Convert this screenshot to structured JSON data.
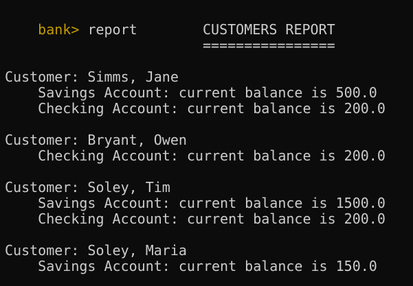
{
  "terminal": {
    "prompt": "bank>",
    "command": "report",
    "report_title": "CUSTOMERS REPORT",
    "report_underline": "================",
    "customers": [
      {
        "name": "Customer: Simms, Jane",
        "accounts": [
          "Savings Account: current balance is 500.0",
          "Checking Account: current balance is 200.0"
        ]
      },
      {
        "name": "Customer: Bryant, Owen",
        "accounts": [
          "Checking Account: current balance is 200.0"
        ]
      },
      {
        "name": "Customer: Soley, Tim",
        "accounts": [
          "Savings Account: current balance is 1500.0",
          "Checking Account: current balance is 200.0"
        ]
      },
      {
        "name": "Customer: Soley, Maria",
        "accounts": [
          "Savings Account: current balance is 150.0"
        ]
      }
    ]
  }
}
